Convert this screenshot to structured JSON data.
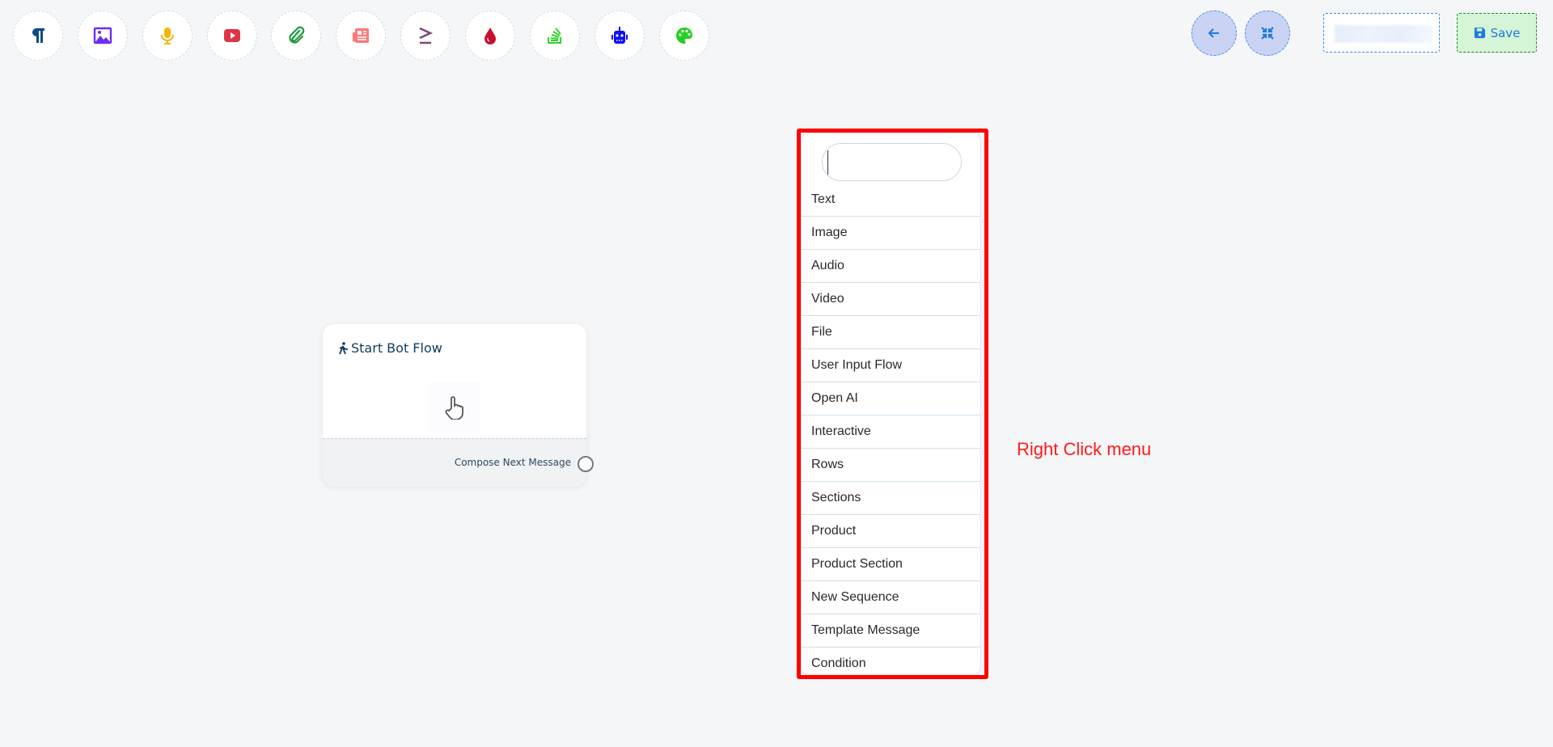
{
  "toolbar": {
    "tools": [
      {
        "icon": "paragraph-icon",
        "color": "#0d4a8a"
      },
      {
        "icon": "image-icon",
        "color": "#6f2cf5"
      },
      {
        "icon": "microphone-icon",
        "color": "#f5b50a"
      },
      {
        "icon": "youtube-icon",
        "color": "#dc3545"
      },
      {
        "icon": "paperclip-icon",
        "color": "#1e9a3c"
      },
      {
        "icon": "newspaper-icon",
        "color": "#ff7878"
      },
      {
        "icon": "greater-equal-icon",
        "color": "#7a4a7a"
      },
      {
        "icon": "droplet-icon",
        "color": "#c8102e"
      },
      {
        "icon": "stack-overflow-icon",
        "color": "#2ed52e"
      },
      {
        "icon": "robot-icon",
        "color": "#1010f0"
      },
      {
        "icon": "palette-icon",
        "color": "#22d022"
      }
    ]
  },
  "header": {
    "save_label": "Save"
  },
  "node": {
    "title": "Start Bot Flow",
    "footer_label": "Compose Next Message"
  },
  "context_menu": {
    "search_value": "",
    "items": [
      "Text",
      "Image",
      "Audio",
      "Video",
      "File",
      "User Input Flow",
      "Open AI",
      "Interactive",
      "Rows",
      "Sections",
      "Product",
      "Product Section",
      "New Sequence",
      "Template Message",
      "Condition"
    ]
  },
  "annotation": {
    "label": "Right Click menu",
    "color": "#ff0000"
  }
}
